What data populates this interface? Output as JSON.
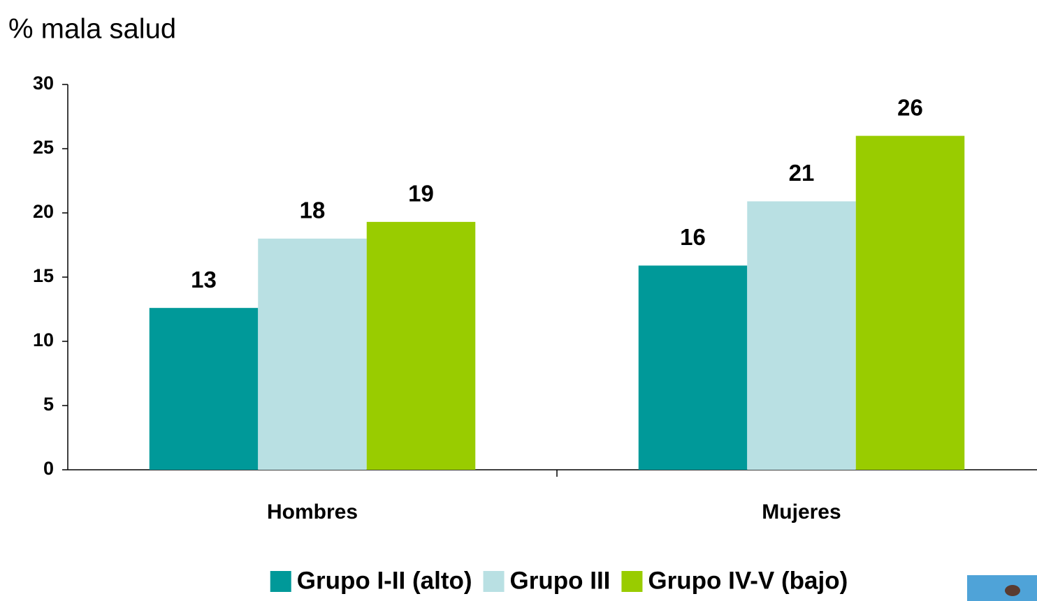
{
  "chart_data": {
    "type": "bar",
    "title": "% mala salud",
    "categories": [
      "Hombres",
      "Mujeres"
    ],
    "series": [
      {
        "name": "Grupo I-II (alto)",
        "color": "#009999",
        "values": [
          12.6,
          15.9
        ],
        "value_labels": [
          "13",
          "16"
        ]
      },
      {
        "name": "Grupo III",
        "color": "#b9e0e3",
        "values": [
          18.0,
          20.9
        ],
        "value_labels": [
          "18",
          "21"
        ]
      },
      {
        "name": "Grupo IV-V (bajo)",
        "color": "#99cc00",
        "values": [
          19.3,
          26.0
        ],
        "value_labels": [
          "19",
          "26"
        ]
      }
    ],
    "ylim": [
      0,
      30
    ],
    "yticks": [
      0,
      5,
      10,
      15,
      20,
      25,
      30
    ],
    "grid": false,
    "legend": "bottom"
  }
}
